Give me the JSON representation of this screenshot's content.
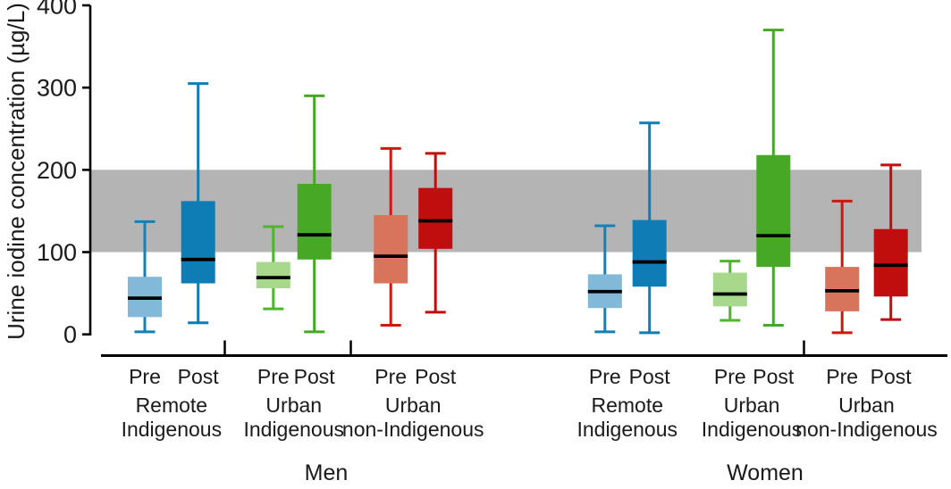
{
  "chart_data": {
    "type": "boxplot",
    "title": "",
    "ylabel": "Urine iodine concentration (µg/L)",
    "xlabel": "",
    "ylim": [
      0,
      400
    ],
    "yticks": [
      0,
      100,
      200,
      300,
      400
    ],
    "grid": false,
    "legend": "none",
    "reference_band": {
      "y_from": 100,
      "y_to": 200,
      "color": "#b4b4b4"
    },
    "colors": {
      "blue_light": "#82b9d8",
      "blue_dark": "#0e7cb5",
      "blue_line": "#1380b6",
      "green_light": "#a8d88c",
      "green_dark": "#47a826",
      "green_line": "#4fb42e",
      "red_light": "#d8745c",
      "red_dark": "#c00d0d",
      "red_line": "#d01712",
      "median": "#000000",
      "axis": "#000000"
    },
    "sections": [
      {
        "label": "Men",
        "groups": [
          {
            "label_lines": [
              "Remote",
              "Indigenous"
            ],
            "boxes": [
              {
                "label": "Pre",
                "fill": "#82b9d8",
                "line": "#1380b6",
                "low": 3,
                "q1": 21,
                "median": 44,
                "q3": 70,
                "high": 137
              },
              {
                "label": "Post",
                "fill": "#0e7cb5",
                "line": "#0e7cb5",
                "low": 14,
                "q1": 62,
                "median": 91,
                "q3": 162,
                "high": 305
              }
            ]
          },
          {
            "label_lines": [
              "Urban",
              "Indigenous"
            ],
            "boxes": [
              {
                "label": "Pre",
                "fill": "#a8d88c",
                "line": "#4fb42e",
                "low": 31,
                "q1": 56,
                "median": 69,
                "q3": 88,
                "high": 131
              },
              {
                "label": "Post",
                "fill": "#47a826",
                "line": "#47a826",
                "low": 3,
                "q1": 91,
                "median": 121,
                "q3": 183,
                "high": 290
              }
            ]
          },
          {
            "label_lines": [
              "Urban",
              "non-Indigenous"
            ],
            "boxes": [
              {
                "label": "Pre",
                "fill": "#d8745c",
                "line": "#d01712",
                "low": 11,
                "q1": 62,
                "median": 95,
                "q3": 145,
                "high": 226
              },
              {
                "label": "Post",
                "fill": "#c00d0d",
                "line": "#c00d0d",
                "low": 27,
                "q1": 104,
                "median": 138,
                "q3": 178,
                "high": 220
              }
            ]
          }
        ]
      },
      {
        "label": "Women",
        "groups": [
          {
            "label_lines": [
              "Remote",
              "Indigenous"
            ],
            "boxes": [
              {
                "label": "Pre",
                "fill": "#82b9d8",
                "line": "#1380b6",
                "low": 3,
                "q1": 32,
                "median": 52,
                "q3": 73,
                "high": 132
              },
              {
                "label": "Post",
                "fill": "#0e7cb5",
                "line": "#0e7cb5",
                "low": 2,
                "q1": 58,
                "median": 88,
                "q3": 139,
                "high": 257
              }
            ]
          },
          {
            "label_lines": [
              "Urban",
              "Indigenous"
            ],
            "boxes": [
              {
                "label": "Pre",
                "fill": "#a8d88c",
                "line": "#4fb42e",
                "low": 17,
                "q1": 34,
                "median": 49,
                "q3": 75,
                "high": 89
              },
              {
                "label": "Post",
                "fill": "#47a826",
                "line": "#47a826",
                "low": 11,
                "q1": 82,
                "median": 120,
                "q3": 218,
                "high": 370
              }
            ]
          },
          {
            "label_lines": [
              "Urban",
              "non-Indigenous"
            ],
            "boxes": [
              {
                "label": "Pre",
                "fill": "#d8745c",
                "line": "#d01712",
                "low": 2,
                "q1": 28,
                "median": 53,
                "q3": 82,
                "high": 162
              },
              {
                "label": "Post",
                "fill": "#c00d0d",
                "line": "#c00d0d",
                "low": 18,
                "q1": 46,
                "median": 84,
                "q3": 128,
                "high": 206
              }
            ]
          }
        ]
      }
    ]
  }
}
